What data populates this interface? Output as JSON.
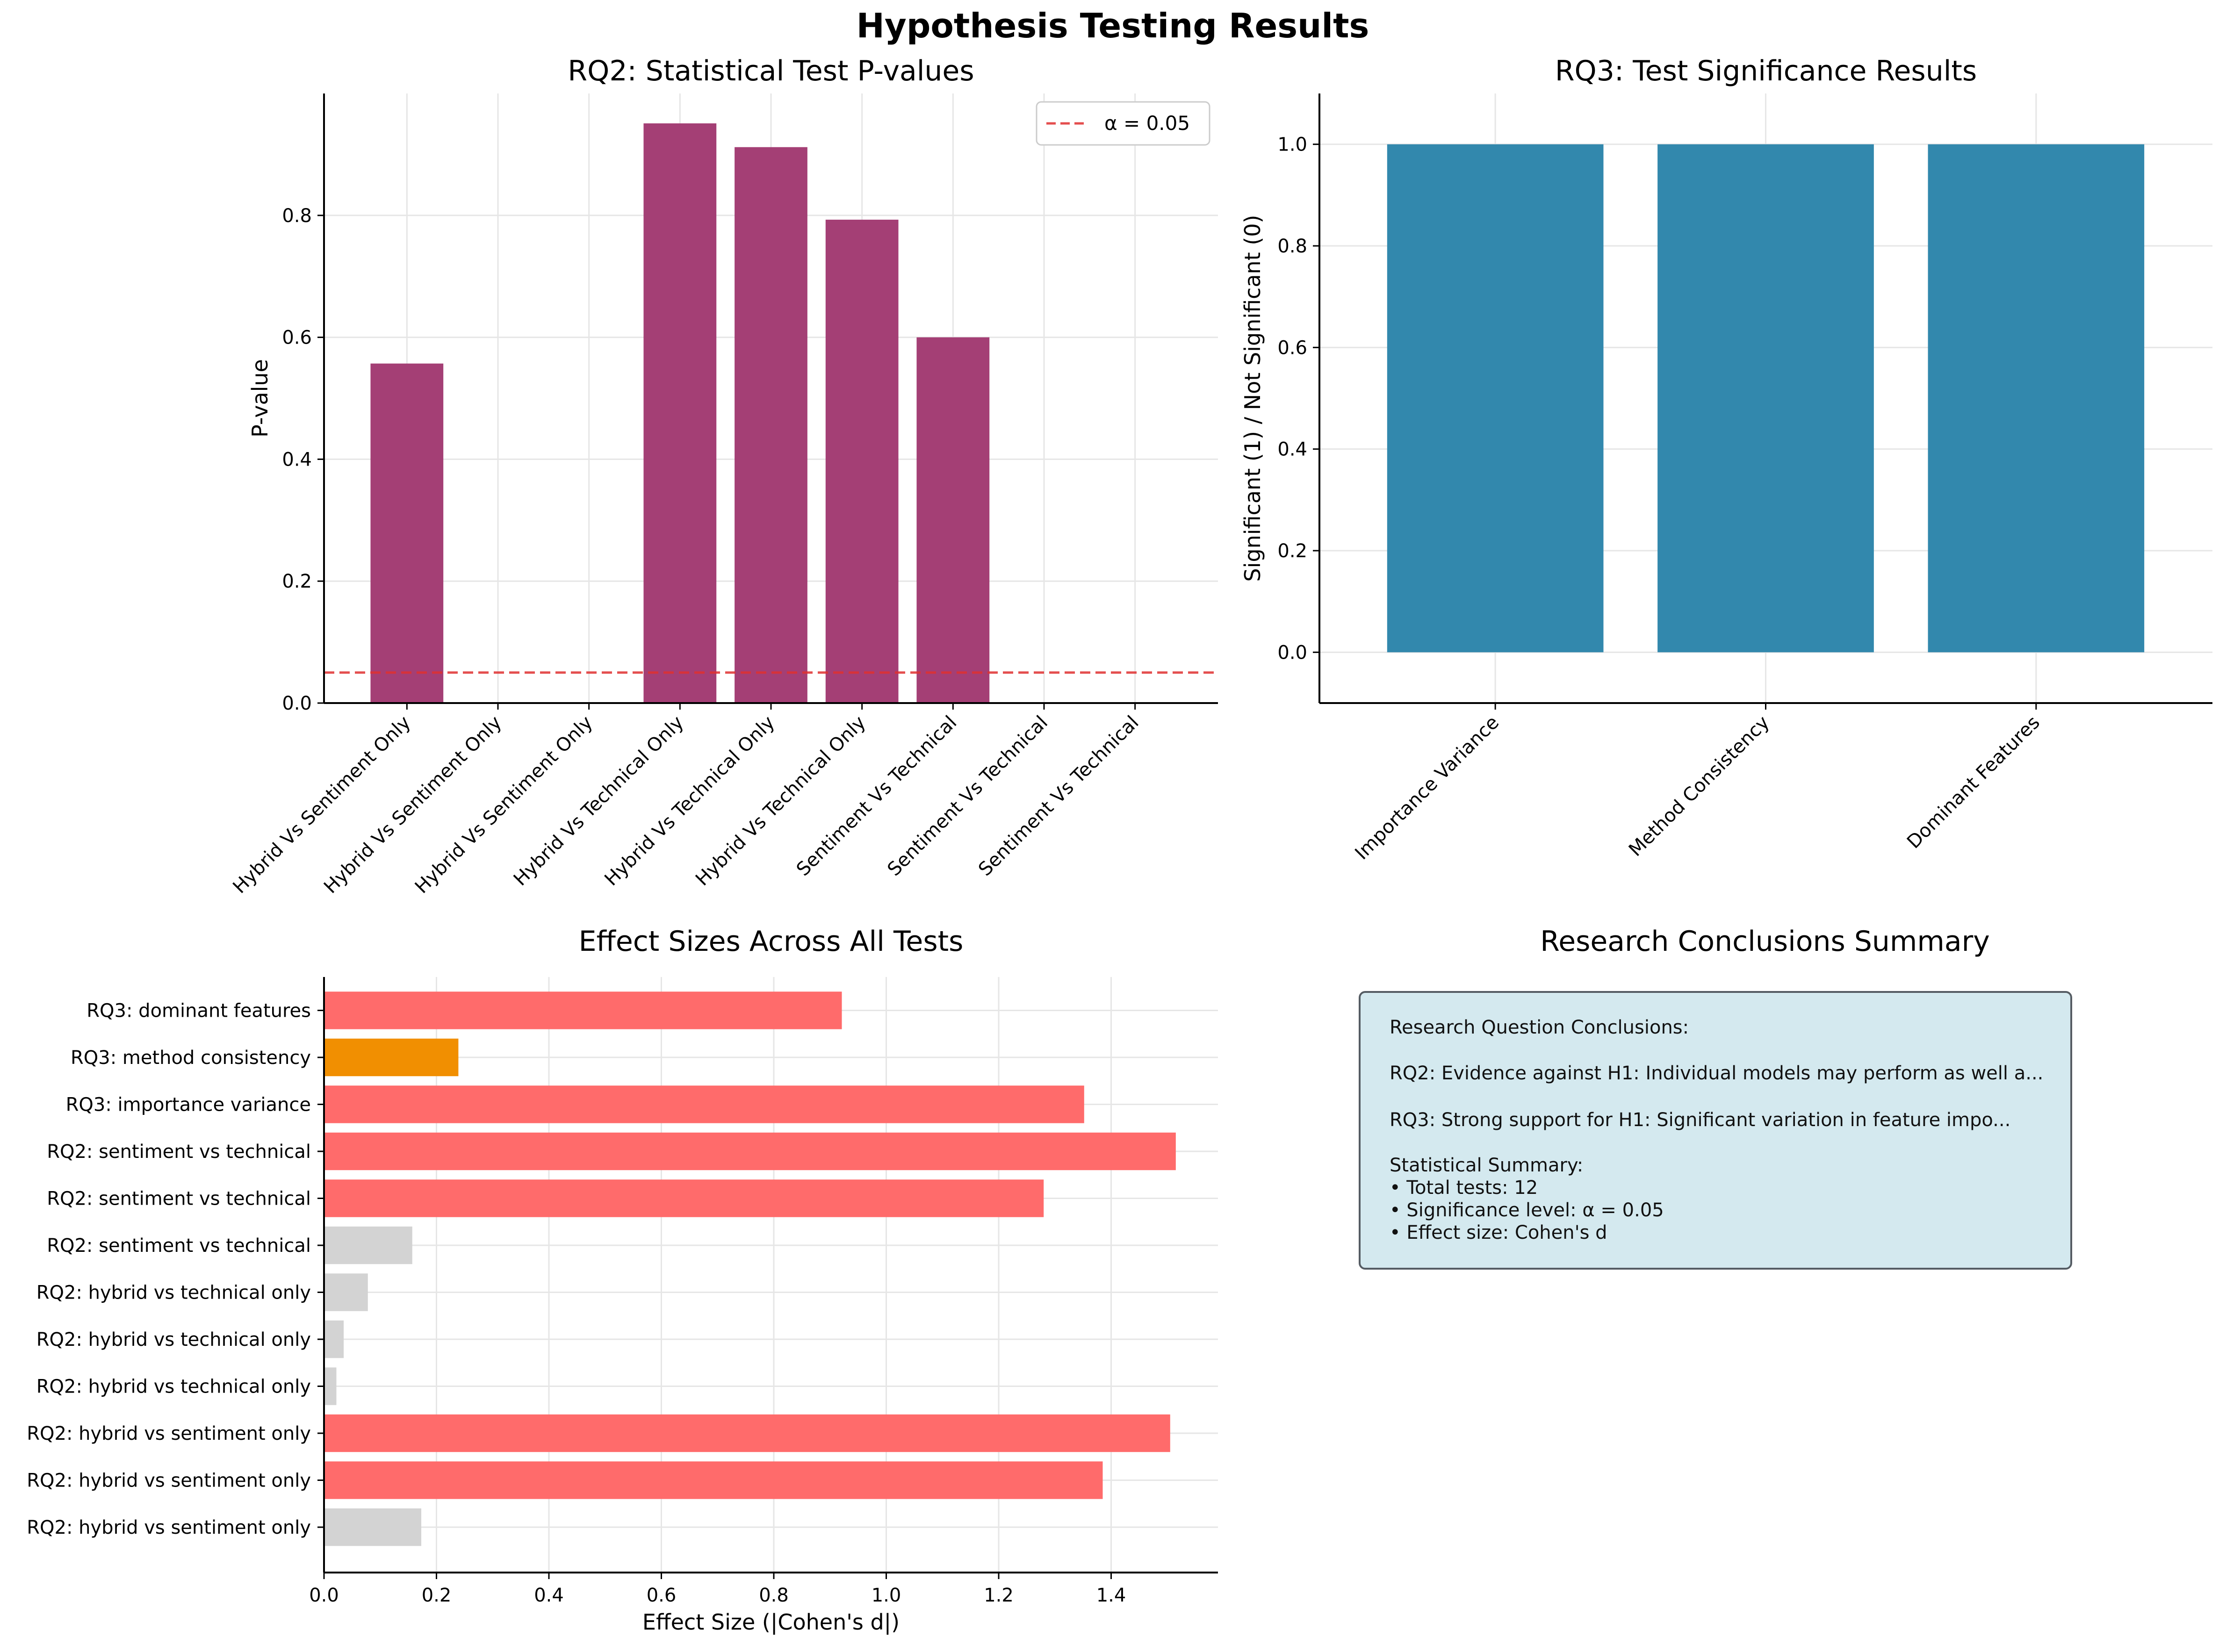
{
  "figure_title": "Hypothesis Testing Results",
  "chart_data": [
    {
      "type": "bar",
      "title": "RQ2: Statistical Test P-values",
      "xlabel": "",
      "ylabel": "P-value",
      "categories": [
        "Hybrid Vs Sentiment Only",
        "Hybrid Vs Sentiment Only",
        "Hybrid Vs Sentiment Only",
        "Hybrid Vs Technical Only",
        "Hybrid Vs Technical Only",
        "Hybrid Vs Technical Only",
        "Sentiment Vs Technical",
        "Sentiment Vs Technical",
        "Sentiment Vs Technical"
      ],
      "values": [
        0.557,
        0.0,
        0.0,
        0.951,
        0.912,
        0.793,
        0.6,
        0.0,
        0.0
      ],
      "ylim": [
        0,
        1.0
      ],
      "yticks": [
        0.0,
        0.2,
        0.4,
        0.6,
        0.8
      ],
      "reference_line": {
        "value": 0.05,
        "label": "α = 0.05",
        "color": "#e03030",
        "style": "dashed"
      },
      "legend": "top-right",
      "grid": true,
      "colors": {
        "bar": "#a23b72"
      }
    },
    {
      "type": "bar",
      "title": "RQ3: Test Significance Results",
      "xlabel": "",
      "ylabel": "Significant (1) / Not Significant (0)",
      "categories": [
        "Importance Variance",
        "Method Consistency",
        "Dominant Features"
      ],
      "values": [
        1.0,
        1.0,
        1.0
      ],
      "ylim": [
        -0.1,
        1.1
      ],
      "yticks": [
        0.0,
        0.2,
        0.4,
        0.6,
        0.8,
        1.0
      ],
      "grid": true,
      "colors": {
        "bar": "#2e86ab"
      }
    },
    {
      "type": "bar",
      "orientation": "horizontal",
      "title": "Effect Sizes Across All Tests",
      "xlabel": "Effect Size (|Cohen's d|)",
      "ylabel": "",
      "categories": [
        "RQ2: hybrid vs sentiment only",
        "RQ2: hybrid vs sentiment only",
        "RQ2: hybrid vs sentiment only",
        "RQ2: hybrid vs technical only",
        "RQ2: hybrid vs technical only",
        "RQ2: hybrid vs technical only",
        "RQ2: sentiment vs technical",
        "RQ2: sentiment vs technical",
        "RQ2: sentiment vs technical",
        "RQ3: importance variance",
        "RQ3: method consistency",
        "RQ3: dominant features"
      ],
      "values": [
        0.173,
        1.385,
        1.505,
        0.022,
        0.035,
        0.078,
        0.157,
        1.28,
        1.515,
        1.352,
        0.239,
        0.921
      ],
      "bar_colors": [
        "#d3d3d3",
        "#ff6b6b",
        "#ff6b6b",
        "#d3d3d3",
        "#d3d3d3",
        "#d3d3d3",
        "#d3d3d3",
        "#ff6b6b",
        "#ff6b6b",
        "#ff6b6b",
        "#f18f01",
        "#ff6b6b"
      ],
      "xlim": [
        0,
        1.59
      ],
      "xticks": [
        0.0,
        0.2,
        0.4,
        0.6,
        0.8,
        1.0,
        1.2,
        1.4
      ],
      "grid": true
    }
  ],
  "summary_panel": {
    "title": "Research Conclusions Summary",
    "lines": [
      "Research Question Conclusions:",
      "RQ2: Evidence against H1: Individual models may perform as well a...",
      "RQ3: Strong support for H1: Significant variation in feature impo...",
      "Statistical Summary:",
      "• Total tests: 12",
      "• Significance level: α = 0.05",
      "• Effect size: Cohen's d"
    ]
  }
}
